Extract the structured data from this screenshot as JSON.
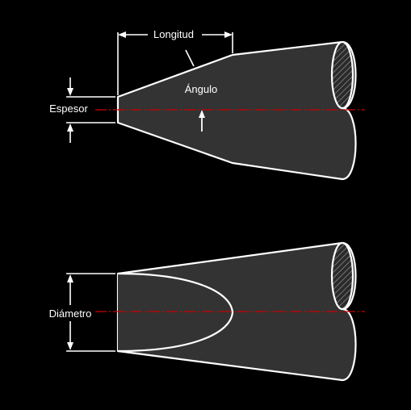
{
  "diagram": {
    "labels": {
      "length": "Longitud",
      "angle": "Ángulo",
      "thickness": "Espesor",
      "diameter": "Diámetro"
    },
    "colors": {
      "background": "#000000",
      "body_fill": "#333333",
      "outline": "#ffffff",
      "centerline": "#cc0000",
      "hatch": "#777777"
    }
  }
}
